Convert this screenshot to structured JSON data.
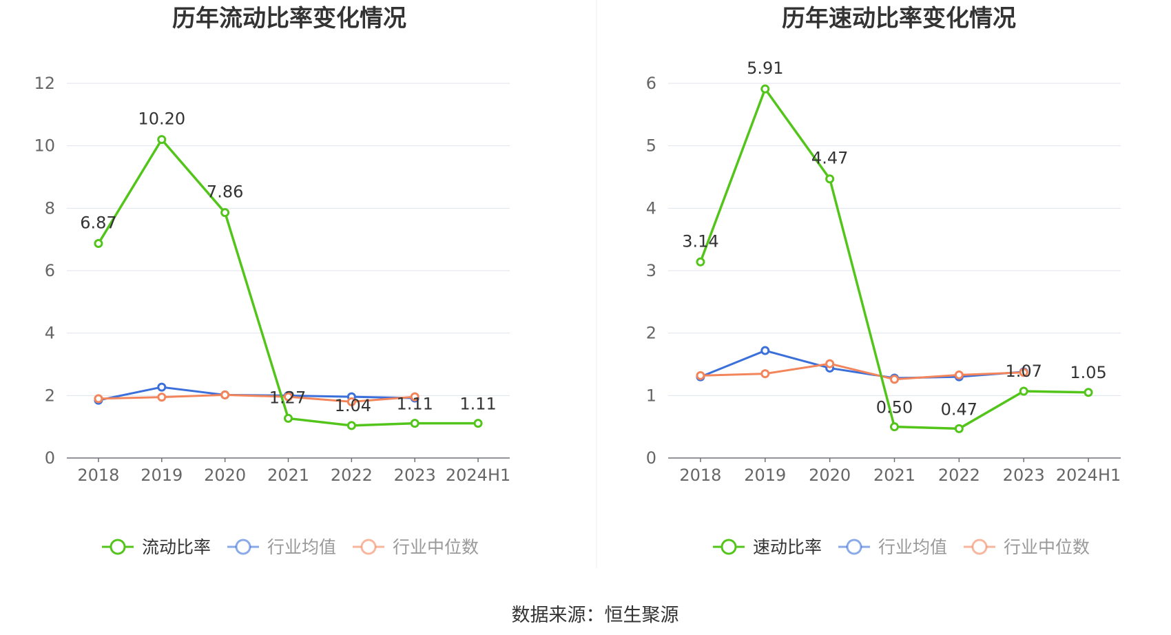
{
  "source_text": "数据来源：恒生聚源",
  "chart_data": [
    {
      "type": "line",
      "title": "历年流动比率变化情况",
      "categories": [
        "2018",
        "2019",
        "2020",
        "2021",
        "2022",
        "2023",
        "2024H1"
      ],
      "ylim": [
        0,
        12
      ],
      "yticks": [
        0,
        2,
        4,
        6,
        8,
        10,
        12
      ],
      "grid": true,
      "legend_position": "bottom-center",
      "series": [
        {
          "name": "流动比率",
          "color": "#52c41a",
          "values": [
            6.87,
            10.2,
            7.86,
            1.27,
            1.04,
            1.11,
            1.11
          ],
          "labels": [
            "6.87",
            "10.20",
            "7.86",
            "1.27",
            "1.04",
            "1.11",
            "1.11"
          ]
        },
        {
          "name": "行业均值",
          "color": "#3b6fd9",
          "values": [
            1.85,
            2.27,
            2.02,
            2.0,
            1.96,
            1.92,
            null
          ]
        },
        {
          "name": "行业中位数",
          "color": "#f2855b",
          "values": [
            1.9,
            1.95,
            2.02,
            1.96,
            1.8,
            1.96,
            null
          ]
        }
      ]
    },
    {
      "type": "line",
      "title": "历年速动比率变化情况",
      "categories": [
        "2018",
        "2019",
        "2020",
        "2021",
        "2022",
        "2023",
        "2024H1"
      ],
      "ylim": [
        0,
        6
      ],
      "yticks": [
        0,
        1,
        2,
        3,
        4,
        5,
        6
      ],
      "grid": true,
      "legend_position": "bottom-center",
      "series": [
        {
          "name": "速动比率",
          "color": "#52c41a",
          "values": [
            3.14,
            5.91,
            4.47,
            0.5,
            0.47,
            1.07,
            1.05
          ],
          "labels": [
            "3.14",
            "5.91",
            "4.47",
            "0.50",
            "0.47",
            "1.07",
            "1.05"
          ]
        },
        {
          "name": "行业均值",
          "color": "#3b6fd9",
          "values": [
            1.3,
            1.72,
            1.44,
            1.28,
            1.3,
            1.38,
            null
          ]
        },
        {
          "name": "行业中位数",
          "color": "#f2855b",
          "values": [
            1.32,
            1.35,
            1.51,
            1.26,
            1.33,
            1.37,
            null
          ]
        }
      ]
    }
  ]
}
